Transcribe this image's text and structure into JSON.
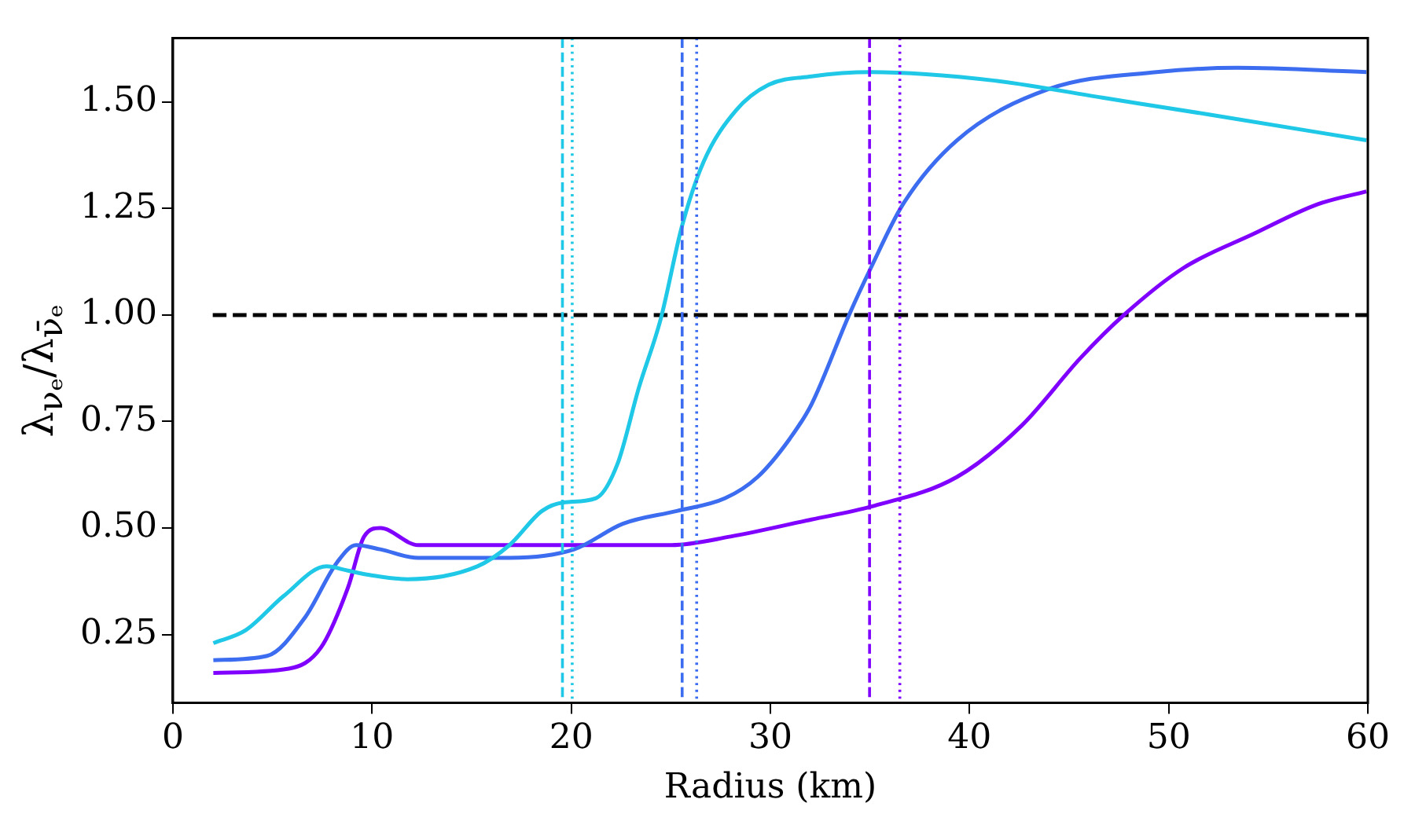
{
  "chart_data": {
    "type": "line",
    "xlabel": "Radius (km)",
    "ylabel": "λ$_{νₑ}$/λ$_{ν̄ₑ}$",
    "xlim": [
      0,
      60
    ],
    "xticks": [
      0,
      10,
      20,
      30,
      40,
      50,
      60
    ],
    "ylim": [
      0.09,
      1.65
    ],
    "yticks": [
      {
        "value": 0.25,
        "label": "0.25"
      },
      {
        "value": 0.5,
        "label": "0.50"
      },
      {
        "value": 0.75,
        "label": "0.75"
      },
      {
        "value": 1.0,
        "label": "1.00"
      },
      {
        "value": 1.25,
        "label": "1.25"
      },
      {
        "value": 1.5,
        "label": "1.50"
      }
    ],
    "grid": false,
    "legend": false,
    "marker": "none",
    "line_style": "solid",
    "series": [
      {
        "color": "#1ec8e6",
        "x": [
          2.03,
          3.65,
          5.55,
          7.71,
          8.79,
          9.87,
          11.77,
          15.28,
          16.9,
          18.53,
          19.62,
          21.24,
          22.32,
          23.4,
          24.49,
          25.57,
          26.65,
          28.27,
          29.9,
          32.06,
          35.04,
          41.26,
          46.67,
          52.08,
          59.93
        ],
        "values": [
          0.23,
          0.26,
          0.34,
          0.41,
          0.4,
          0.39,
          0.38,
          0.41,
          0.46,
          0.54,
          0.56,
          0.57,
          0.65,
          0.83,
          0.99,
          1.21,
          1.36,
          1.48,
          1.54,
          1.56,
          1.57,
          1.55,
          1.51,
          1.47,
          1.41
        ]
      },
      {
        "color": "#3c6cf0",
        "x": [
          2.03,
          4.73,
          6.63,
          8.25,
          9.2,
          10.41,
          12.31,
          16.9,
          20.15,
          22.59,
          25.3,
          27.73,
          29.36,
          30.98,
          32.06,
          33.95,
          35.04,
          36.66,
          39.37,
          43.97,
          49.38,
          53.44,
          59.93
        ],
        "values": [
          0.19,
          0.2,
          0.29,
          0.42,
          0.46,
          0.45,
          0.43,
          0.43,
          0.45,
          0.51,
          0.54,
          0.57,
          0.62,
          0.71,
          0.79,
          1.0,
          1.11,
          1.26,
          1.41,
          1.53,
          1.57,
          1.58,
          1.57
        ]
      },
      {
        "color": "#8000ff",
        "x": [
          2.03,
          5.82,
          7.44,
          8.79,
          9.6,
          10.41,
          12.31,
          15.83,
          25.03,
          28.0,
          32.06,
          35.04,
          39.37,
          42.61,
          45.59,
          47.75,
          50.73,
          54.25,
          57.49,
          59.93
        ],
        "values": [
          0.16,
          0.17,
          0.22,
          0.36,
          0.48,
          0.5,
          0.46,
          0.46,
          0.46,
          0.48,
          0.52,
          0.55,
          0.62,
          0.74,
          0.9,
          1.0,
          1.11,
          1.19,
          1.26,
          1.29
        ]
      },
      {
        "color": "#000000",
        "line_style": "dashed",
        "x": [
          2,
          60
        ],
        "values": [
          1.0,
          1.0
        ]
      }
    ],
    "ref_lines": [
      {
        "axis": "x",
        "value": 19.56,
        "color": "#1ec8e6",
        "line_style": "dashed"
      },
      {
        "axis": "x",
        "value": 20.05,
        "color": "#1ec8e6",
        "line_style": "dotted"
      },
      {
        "axis": "x",
        "value": 25.57,
        "color": "#3c6cf0",
        "line_style": "dashed"
      },
      {
        "axis": "x",
        "value": 26.3,
        "color": "#3c6cf0",
        "line_style": "dotted"
      },
      {
        "axis": "x",
        "value": 34.98,
        "color": "#8000ff",
        "line_style": "dashed"
      },
      {
        "axis": "x",
        "value": 36.5,
        "color": "#8000ff",
        "line_style": "dotted"
      }
    ]
  }
}
